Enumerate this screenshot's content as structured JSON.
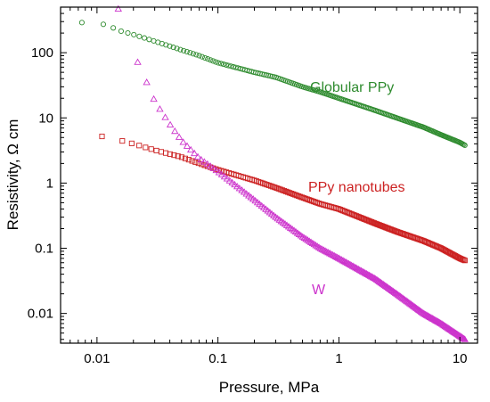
{
  "chart_data": {
    "type": "scatter",
    "xlabel": "Pressure, MPa",
    "ylabel": "Resistivity, Ω cm",
    "x_scale": "log",
    "y_scale": "log",
    "xlim": [
      0.005,
      14
    ],
    "ylim": [
      0.0035,
      500
    ],
    "x_ticks": [
      {
        "value": 0.01,
        "label": "0.01"
      },
      {
        "value": 0.1,
        "label": "0.1"
      },
      {
        "value": 1,
        "label": "1"
      },
      {
        "value": 10,
        "label": "10"
      }
    ],
    "y_ticks": [
      {
        "value": 0.01,
        "label": "0.01"
      },
      {
        "value": 0.1,
        "label": "0.1"
      },
      {
        "value": 1,
        "label": "1"
      },
      {
        "value": 10,
        "label": "10"
      },
      {
        "value": 100,
        "label": "100"
      }
    ],
    "grid": false,
    "series": [
      {
        "name": "Globular PPy",
        "marker": "circle",
        "color": "#2e8b2e",
        "x_range": [
          0.0075,
          11
        ],
        "points": [
          [
            0.0075,
            290
          ],
          [
            0.012,
            270
          ],
          [
            0.015,
            220
          ],
          [
            0.02,
            190
          ],
          [
            0.03,
            150
          ],
          [
            0.05,
            110
          ],
          [
            0.07,
            90
          ],
          [
            0.1,
            70
          ],
          [
            0.2,
            50
          ],
          [
            0.3,
            42
          ],
          [
            0.5,
            30
          ],
          [
            0.7,
            25
          ],
          [
            1,
            20
          ],
          [
            2,
            13
          ],
          [
            3,
            10
          ],
          [
            5,
            7.2
          ],
          [
            7,
            5.5
          ],
          [
            10,
            4.2
          ],
          [
            11,
            3.8
          ]
        ]
      },
      {
        "name": "PPy nanotubes",
        "marker": "square",
        "color": "#cc2222",
        "x_range": [
          0.011,
          11
        ],
        "points": [
          [
            0.011,
            5.2
          ],
          [
            0.015,
            4.6
          ],
          [
            0.02,
            4.0
          ],
          [
            0.03,
            3.2
          ],
          [
            0.05,
            2.5
          ],
          [
            0.07,
            2.0
          ],
          [
            0.1,
            1.6
          ],
          [
            0.2,
            1.1
          ],
          [
            0.3,
            0.85
          ],
          [
            0.5,
            0.6
          ],
          [
            0.7,
            0.48
          ],
          [
            1,
            0.4
          ],
          [
            2,
            0.24
          ],
          [
            3,
            0.18
          ],
          [
            5,
            0.13
          ],
          [
            7,
            0.1
          ],
          [
            10,
            0.07
          ],
          [
            11,
            0.065
          ]
        ]
      },
      {
        "name": "W",
        "marker": "triangle",
        "color": "#cc33cc",
        "x_range": [
          0.015,
          11
        ],
        "points": [
          [
            0.015,
            470
          ],
          [
            0.016,
            230
          ],
          [
            0.02,
            100
          ],
          [
            0.025,
            40
          ],
          [
            0.03,
            18
          ],
          [
            0.04,
            8
          ],
          [
            0.05,
            4.5
          ],
          [
            0.07,
            2.4
          ],
          [
            0.1,
            1.5
          ],
          [
            0.2,
            0.55
          ],
          [
            0.3,
            0.3
          ],
          [
            0.5,
            0.15
          ],
          [
            0.7,
            0.1
          ],
          [
            1,
            0.07
          ],
          [
            2,
            0.034
          ],
          [
            3,
            0.02
          ],
          [
            5,
            0.01
          ],
          [
            7,
            0.007
          ],
          [
            10,
            0.0045
          ],
          [
            11,
            0.004
          ]
        ]
      }
    ]
  }
}
